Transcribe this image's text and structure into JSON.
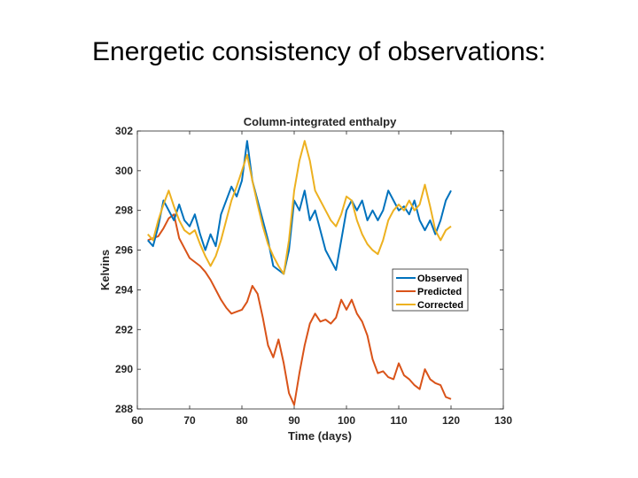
{
  "slide": {
    "title": "Energetic consistency of observations:"
  },
  "chart_data": {
    "type": "line",
    "title": "Column-integrated enthalpy",
    "xlabel": "Time (days)",
    "ylabel": "Kelvins",
    "xlim": [
      60,
      130
    ],
    "ylim": [
      288,
      302
    ],
    "xticks": [
      60,
      70,
      80,
      90,
      100,
      110,
      120,
      130
    ],
    "yticks": [
      288,
      290,
      292,
      294,
      296,
      298,
      300,
      302
    ],
    "grid": false,
    "legend_position": "right",
    "x": [
      62,
      63,
      64,
      65,
      66,
      67,
      68,
      69,
      70,
      71,
      72,
      73,
      74,
      75,
      76,
      77,
      78,
      79,
      80,
      81,
      82,
      83,
      84,
      85,
      86,
      87,
      88,
      89,
      90,
      91,
      92,
      93,
      94,
      95,
      96,
      97,
      98,
      99,
      100,
      101,
      102,
      103,
      104,
      105,
      106,
      107,
      108,
      109,
      110,
      111,
      112,
      113,
      114,
      115,
      116,
      117,
      118,
      119,
      120
    ],
    "series": [
      {
        "name": "Observed",
        "color": "#0072BD",
        "values": [
          296.5,
          296.2,
          297.2,
          298.5,
          298.0,
          297.5,
          298.3,
          297.5,
          297.2,
          297.8,
          296.8,
          296.0,
          296.8,
          296.2,
          297.8,
          298.5,
          299.2,
          298.7,
          299.5,
          301.5,
          299.5,
          298.5,
          297.5,
          296.5,
          295.2,
          295.0,
          294.8,
          296.0,
          298.5,
          298.0,
          299.0,
          297.5,
          298.0,
          297.0,
          296.0,
          295.5,
          295.0,
          296.5,
          298.0,
          298.5,
          298.0,
          298.5,
          297.5,
          298.0,
          297.5,
          298.0,
          299.0,
          298.5,
          298.0,
          298.2,
          297.8,
          298.5,
          297.5,
          297.0,
          297.5,
          296.8,
          297.5,
          298.5,
          299.0
        ]
      },
      {
        "name": "Predicted",
        "color": "#D95319",
        "values": [
          296.5,
          296.6,
          296.7,
          297.1,
          297.6,
          297.8,
          296.6,
          296.1,
          295.6,
          295.4,
          295.2,
          294.9,
          294.5,
          294.0,
          293.5,
          293.1,
          292.8,
          292.9,
          293.0,
          293.4,
          294.2,
          293.8,
          292.6,
          291.2,
          290.6,
          291.5,
          290.3,
          288.8,
          288.2,
          289.8,
          291.2,
          292.3,
          292.8,
          292.4,
          292.5,
          292.3,
          292.6,
          293.5,
          293.0,
          293.5,
          292.8,
          292.4,
          291.7,
          290.5,
          289.8,
          289.9,
          289.6,
          289.5,
          290.3,
          289.7,
          289.5,
          289.2,
          289.0,
          290.0,
          289.5,
          289.3,
          289.2,
          288.6,
          288.5
        ]
      },
      {
        "name": "Corrected",
        "color": "#EDB120",
        "values": [
          296.8,
          296.5,
          297.5,
          298.3,
          299.0,
          298.2,
          297.5,
          297.0,
          296.8,
          297.0,
          296.3,
          295.7,
          295.2,
          295.7,
          296.5,
          297.5,
          298.5,
          299.2,
          300.0,
          300.8,
          299.5,
          298.3,
          297.2,
          296.3,
          295.7,
          295.2,
          294.8,
          296.5,
          299.0,
          300.5,
          301.5,
          300.5,
          299.0,
          298.5,
          298.0,
          297.5,
          297.2,
          297.8,
          298.7,
          298.5,
          297.5,
          296.8,
          296.3,
          296.0,
          295.8,
          296.5,
          297.5,
          298.0,
          298.3,
          298.0,
          298.5,
          298.0,
          298.3,
          299.3,
          298.2,
          297.0,
          296.5,
          297.0,
          297.2
        ]
      }
    ]
  }
}
